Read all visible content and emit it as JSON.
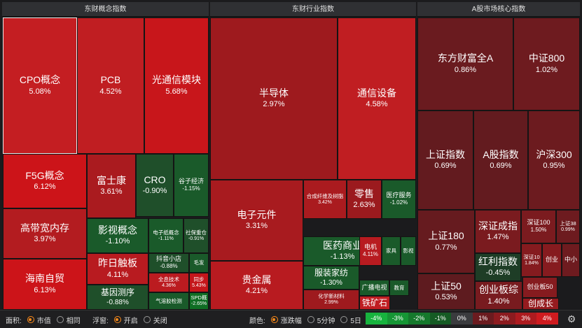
{
  "panels": [
    {
      "title": "东财概念指数"
    },
    {
      "title": "东财行业指数"
    },
    {
      "title": "A股市场核心指数"
    }
  ],
  "tiles": [
    {
      "name": "CPO概念",
      "pct": "5.08%",
      "color": "#c41e22"
    },
    {
      "name": "PCB",
      "pct": "4.52%",
      "color": "#c01e22"
    },
    {
      "name": "光通信模块",
      "pct": "5.68%",
      "color": "#c8161b"
    },
    {
      "name": "F5G概念",
      "pct": "6.12%",
      "color": "#cc1419"
    },
    {
      "name": "高带宽内存",
      "pct": "3.97%",
      "color": "#b31c20"
    },
    {
      "name": "海南自贸",
      "pct": "6.13%",
      "color": "#cc1419"
    },
    {
      "name": "富士康",
      "pct": "3.61%",
      "color": "#aa1b1f"
    },
    {
      "name": "CRO",
      "pct": "-0.90%",
      "color": "#1f4f2a"
    },
    {
      "name": "谷子经济",
      "pct": "-1.15%",
      "color": "#1a5a2a"
    },
    {
      "name": "影视概念",
      "pct": "-1.10%",
      "color": "#1a5a2a"
    },
    {
      "name": "电子纸概念",
      "pct": "-1.11%",
      "color": "#1a5a2a"
    },
    {
      "name": "社保重仓",
      "pct": "-0.91%",
      "color": "#1f4f2a"
    },
    {
      "name": "昨日触板",
      "pct": "4.11%",
      "color": "#b81b20"
    },
    {
      "name": "抖音小店",
      "pct": "-0.88%",
      "color": "#1f4f2a"
    },
    {
      "name": "毛发",
      "pct": "",
      "color": "#1a5a2a"
    },
    {
      "name": "全息技术",
      "pct": "4.36%",
      "color": "#bb1b20"
    },
    {
      "name": "同步",
      "pct": "5.43%",
      "color": "#c4161b"
    },
    {
      "name": "基因测序",
      "pct": "-0.88%",
      "color": "#1f4f2a"
    },
    {
      "name": "气溶胶检测",
      "pct": "",
      "color": "#1a5a2a"
    },
    {
      "name": "SPD概",
      "pct": "-2.65%",
      "color": "#0f6e24"
    },
    {
      "name": "半导体",
      "pct": "2.97%",
      "color": "#9e1a1e"
    },
    {
      "name": "通信设备",
      "pct": "4.58%",
      "color": "#c01e22"
    },
    {
      "name": "电子元件",
      "pct": "3.31%",
      "color": "#a81b1f"
    },
    {
      "name": "合成纤维及树脂",
      "pct": "3.42%",
      "color": "#aa1b1f"
    },
    {
      "name": "零售",
      "pct": "2.63%",
      "color": "#9b1a1e"
    },
    {
      "name": "医疗服务",
      "pct": "-1.02%",
      "color": "#1a5a2a"
    },
    {
      "name": "贵金属",
      "pct": "4.21%",
      "color": "#b81b20"
    },
    {
      "name": "医药商业",
      "pct": "-1.13%",
      "color": "#1a5a2a"
    },
    {
      "name": "电机",
      "pct": "4.11%",
      "color": "#b81b20"
    },
    {
      "name": "家具",
      "pct": "",
      "color": "#1a5a2a"
    },
    {
      "name": "影视",
      "pct": "",
      "color": "#1a5a2a"
    },
    {
      "name": "服装家纺",
      "pct": "-1.30%",
      "color": "#1a5a2a"
    },
    {
      "name": "化学新材料",
      "pct": "2.99%",
      "color": "#9e1a1e"
    },
    {
      "name": "广播电视",
      "pct": "",
      "color": "#1a5a2a"
    },
    {
      "name": "教育",
      "pct": "",
      "color": "#1a5a2a"
    },
    {
      "name": "铁矿石",
      "pct": "",
      "color": "#c01e22"
    },
    {
      "name": "东方财富全A",
      "pct": "0.86%",
      "color": "#6a1b1f"
    },
    {
      "name": "中证800",
      "pct": "1.02%",
      "color": "#6e1b1f"
    },
    {
      "name": "上证指数",
      "pct": "0.69%",
      "color": "#631b1f"
    },
    {
      "name": "A股指数",
      "pct": "0.69%",
      "color": "#631b1f"
    },
    {
      "name": "沪深300",
      "pct": "0.95%",
      "color": "#6c1b1f"
    },
    {
      "name": "上证180",
      "pct": "0.77%",
      "color": "#661b1f"
    },
    {
      "name": "深证成指",
      "pct": "1.47%",
      "color": "#7a1b1f"
    },
    {
      "name": "深证100",
      "pct": "1.50%",
      "color": "#7b1b1f"
    },
    {
      "name": "上证38",
      "pct": "0.99%",
      "color": "#6d1b1f"
    },
    {
      "name": "红利指数",
      "pct": "-0.45%",
      "color": "#1e3d26"
    },
    {
      "name": "深证10",
      "pct": "1.84%",
      "color": "#851b1f"
    },
    {
      "name": "创业",
      "pct": "",
      "color": "#861b1f"
    },
    {
      "name": "中小",
      "pct": "",
      "color": "#6e1b1f"
    },
    {
      "name": "上证50",
      "pct": "0.53%",
      "color": "#5e1b1f"
    },
    {
      "name": "创业板综",
      "pct": "1.40%",
      "color": "#781b1f"
    },
    {
      "name": "创业板50",
      "pct": "",
      "color": "#861b1f"
    },
    {
      "name": "创成长",
      "pct": "",
      "color": "#961b1f"
    }
  ],
  "footer": {
    "area_label": "面积:",
    "area_opt1": "市值",
    "area_opt2": "相同",
    "float_label": "浮窗:",
    "float_opt1": "开启",
    "float_opt2": "关闭",
    "color_label": "颜色:",
    "color_opt1": "涨跌幅",
    "color_opt2": "5分钟",
    "color_opt3": "5日",
    "scale": [
      {
        "label": "-4%",
        "color": "#17b33e"
      },
      {
        "label": "-3%",
        "color": "#169635"
      },
      {
        "label": "-2%",
        "color": "#15792c"
      },
      {
        "label": "-1%",
        "color": "#155b24"
      },
      {
        "label": "0%",
        "color": "#3a3b3e"
      },
      {
        "label": "1%",
        "color": "#6b1b1f"
      },
      {
        "label": "2%",
        "color": "#8c1b1f"
      },
      {
        "label": "3%",
        "color": "#ad1b1f"
      },
      {
        "label": "4%",
        "color": "#ce1b1f"
      }
    ],
    "settings_icon": "gear-icon"
  }
}
